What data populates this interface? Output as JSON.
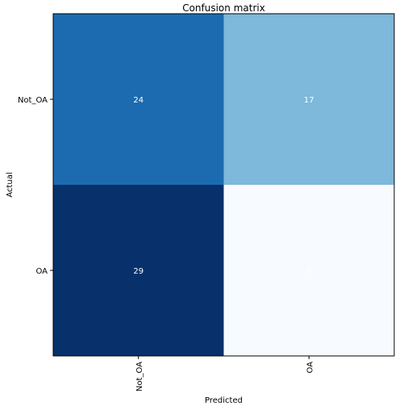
{
  "chart_data": {
    "type": "heatmap",
    "title": "Confusion matrix",
    "xlabel": "Predicted",
    "ylabel": "Actual",
    "x_categories": [
      "Not_OA",
      "OA"
    ],
    "y_categories": [
      "Not_OA",
      "OA"
    ],
    "values": [
      [
        24,
        17
      ],
      [
        29,
        7
      ]
    ],
    "colormap": "Blues",
    "value_range": [
      7,
      29
    ],
    "grid": false,
    "legend": "none",
    "text_color": "#ffffff"
  }
}
